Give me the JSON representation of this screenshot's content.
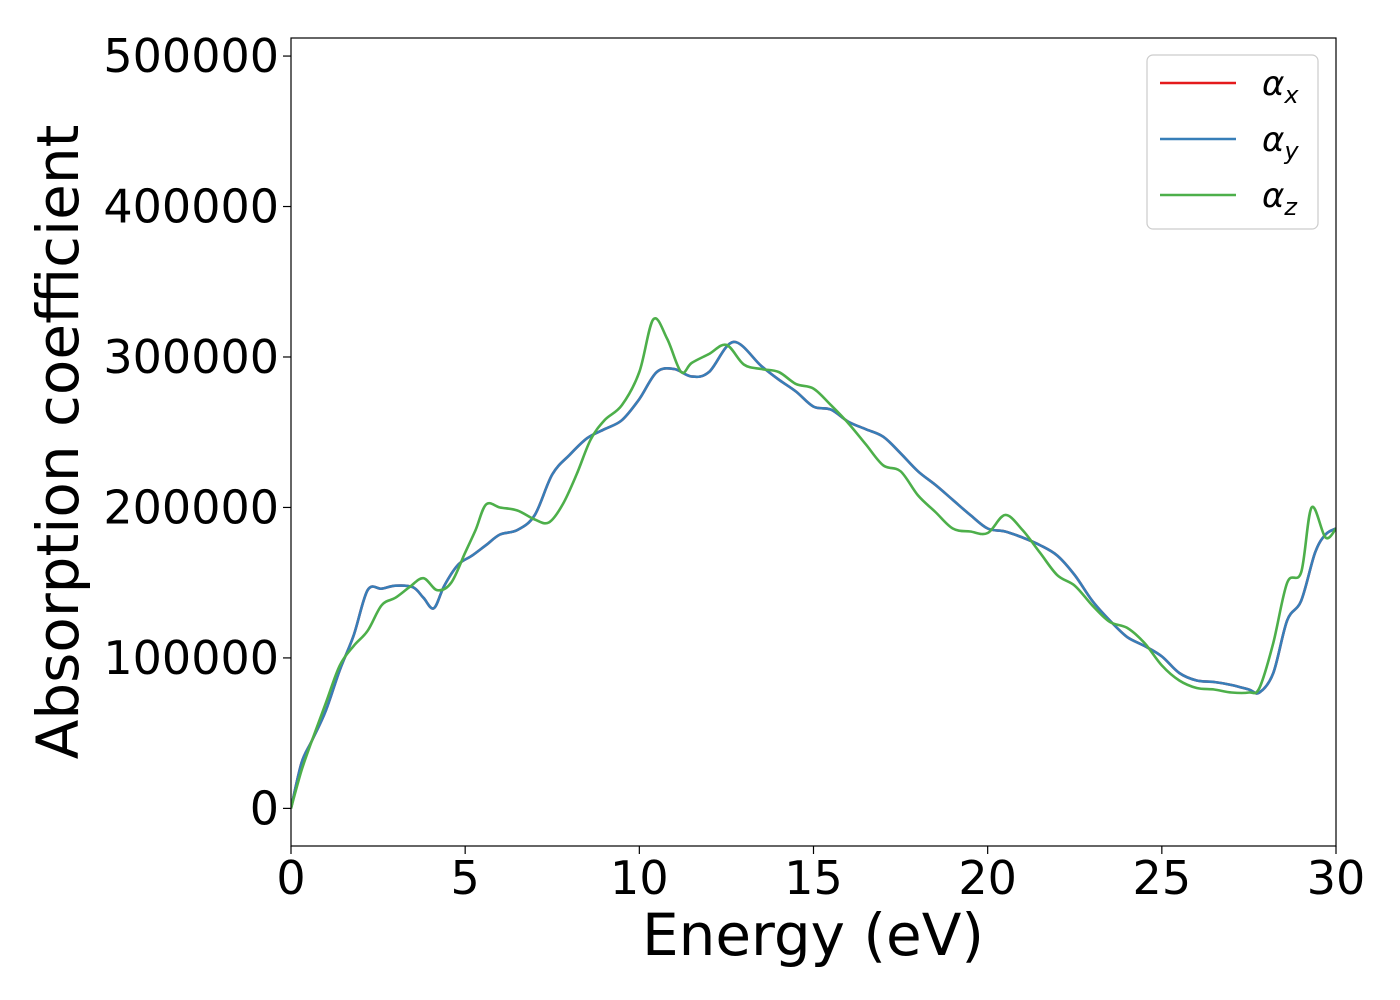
{
  "chart_data": {
    "type": "line",
    "title": "",
    "xlabel": "Energy (eV)",
    "ylabel": "Absorption coefficient",
    "xlim": [
      0,
      30
    ],
    "ylim": [
      -25000,
      512000
    ],
    "xticks": [
      0,
      5,
      10,
      15,
      20,
      25,
      30
    ],
    "yticks": [
      0,
      100000,
      200000,
      300000,
      400000,
      500000
    ],
    "grid": false,
    "legend_position": "top-right",
    "series": [
      {
        "name": "α_x",
        "color": "#e41a1c",
        "x": [
          0,
          0.3,
          0.6,
          1.0,
          1.4,
          1.8,
          2.2,
          2.6,
          3.0,
          3.5,
          3.8,
          4.1,
          4.4,
          4.8,
          5.2,
          5.6,
          6.0,
          6.5,
          7.0,
          7.5,
          8.0,
          8.5,
          9.0,
          9.5,
          10.0,
          10.5,
          11.0,
          11.5,
          12.0,
          12.7,
          13.5,
          14.0,
          14.5,
          15.0,
          15.5,
          16.0,
          16.5,
          17.0,
          17.5,
          18.0,
          18.5,
          19.0,
          19.5,
          20.0,
          20.5,
          21.0,
          21.5,
          22.0,
          22.5,
          23.0,
          23.5,
          24.0,
          24.5,
          25.0,
          25.5,
          26.0,
          26.5,
          27.0,
          27.5,
          27.8,
          28.2,
          28.6,
          29.0,
          29.4,
          29.7,
          30.0
        ],
        "y": [
          0,
          30000,
          45000,
          65000,
          92000,
          115000,
          145000,
          146000,
          148000,
          147000,
          140000,
          133000,
          148000,
          162000,
          168000,
          175000,
          182000,
          185000,
          195000,
          222000,
          235000,
          246000,
          252000,
          258000,
          272000,
          290000,
          292000,
          287000,
          290000,
          310000,
          294000,
          285000,
          277000,
          267000,
          265000,
          257000,
          252000,
          247000,
          236000,
          224000,
          215000,
          205000,
          195000,
          186000,
          184000,
          180000,
          175000,
          168000,
          155000,
          138000,
          125000,
          114000,
          108000,
          101000,
          90000,
          85000,
          84000,
          82000,
          79000,
          77000,
          90000,
          125000,
          138000,
          170000,
          182000,
          186000
        ]
      },
      {
        "name": "α_y",
        "color": "#377eb8",
        "x": [
          0,
          0.3,
          0.6,
          1.0,
          1.4,
          1.8,
          2.2,
          2.6,
          3.0,
          3.5,
          3.8,
          4.1,
          4.4,
          4.8,
          5.2,
          5.6,
          6.0,
          6.5,
          7.0,
          7.5,
          8.0,
          8.5,
          9.0,
          9.5,
          10.0,
          10.5,
          11.0,
          11.5,
          12.0,
          12.7,
          13.5,
          14.0,
          14.5,
          15.0,
          15.5,
          16.0,
          16.5,
          17.0,
          17.5,
          18.0,
          18.5,
          19.0,
          19.5,
          20.0,
          20.5,
          21.0,
          21.5,
          22.0,
          22.5,
          23.0,
          23.5,
          24.0,
          24.5,
          25.0,
          25.5,
          26.0,
          26.5,
          27.0,
          27.5,
          27.8,
          28.2,
          28.6,
          29.0,
          29.4,
          29.7,
          30.0
        ],
        "y": [
          0,
          30000,
          45000,
          65000,
          92000,
          115000,
          145000,
          146000,
          148000,
          147000,
          140000,
          133000,
          148000,
          162000,
          168000,
          175000,
          182000,
          185000,
          195000,
          222000,
          235000,
          246000,
          252000,
          258000,
          272000,
          290000,
          292000,
          287000,
          290000,
          310000,
          294000,
          285000,
          277000,
          267000,
          265000,
          257000,
          252000,
          247000,
          236000,
          224000,
          215000,
          205000,
          195000,
          186000,
          184000,
          180000,
          175000,
          168000,
          155000,
          138000,
          125000,
          114000,
          108000,
          101000,
          90000,
          85000,
          84000,
          82000,
          79000,
          77000,
          90000,
          125000,
          138000,
          170000,
          182000,
          186000
        ]
      },
      {
        "name": "α_z",
        "color": "#4daf4a",
        "x": [
          0,
          0.3,
          0.6,
          1.0,
          1.4,
          1.8,
          2.2,
          2.6,
          3.0,
          3.4,
          3.8,
          4.2,
          4.6,
          5.0,
          5.3,
          5.6,
          6.0,
          6.5,
          7.0,
          7.4,
          7.8,
          8.2,
          8.6,
          9.0,
          9.5,
          10.0,
          10.4,
          10.8,
          11.2,
          11.5,
          12.0,
          12.5,
          13.0,
          13.5,
          14.0,
          14.5,
          15.0,
          15.5,
          16.0,
          16.5,
          17.0,
          17.5,
          18.0,
          18.5,
          19.0,
          19.5,
          20.0,
          20.5,
          21.0,
          21.5,
          22.0,
          22.5,
          23.0,
          23.5,
          24.0,
          24.5,
          25.0,
          25.5,
          26.0,
          26.5,
          27.0,
          27.5,
          27.8,
          28.2,
          28.6,
          29.0,
          29.3,
          29.7,
          30.0
        ],
        "y": [
          0,
          25000,
          45000,
          70000,
          95000,
          108000,
          118000,
          135000,
          140000,
          147000,
          153000,
          145000,
          150000,
          170000,
          185000,
          202000,
          200000,
          198000,
          192000,
          190000,
          202000,
          222000,
          245000,
          258000,
          268000,
          290000,
          325000,
          312000,
          290000,
          296000,
          302000,
          308000,
          295000,
          292000,
          290000,
          282000,
          279000,
          268000,
          256000,
          242000,
          228000,
          224000,
          208000,
          197000,
          186000,
          184000,
          183000,
          195000,
          185000,
          170000,
          155000,
          148000,
          135000,
          124000,
          120000,
          110000,
          95000,
          85000,
          80000,
          79000,
          77000,
          77000,
          80000,
          110000,
          150000,
          157000,
          200000,
          180000,
          186000
        ]
      }
    ]
  }
}
